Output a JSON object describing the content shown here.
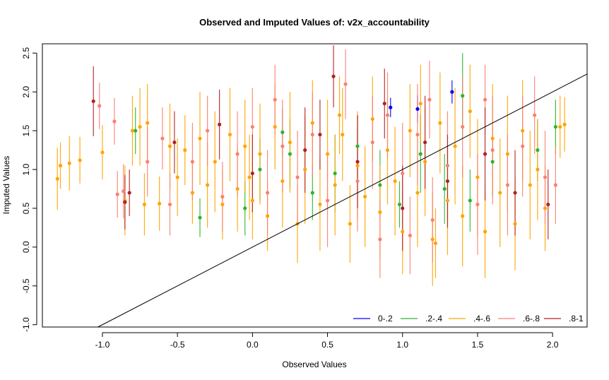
{
  "chart_data": {
    "type": "scatter",
    "title": "Observed and Imputed Values of: v2x_accountability",
    "xlabel": "Observed Values",
    "ylabel": "Imputed Values",
    "xlim": [
      -1.4,
      2.23
    ],
    "ylim": [
      -1.03,
      2.62
    ],
    "x_ticks": [
      -1.0,
      -0.5,
      0.0,
      0.5,
      1.0,
      1.5,
      2.0
    ],
    "x_tick_labels": [
      "-1.0",
      "-0.5",
      "0.0",
      "0.5",
      "1.0",
      "1.5",
      "2.0"
    ],
    "y_ticks": [
      -1.0,
      -0.5,
      0.0,
      0.5,
      1.0,
      1.5,
      2.0,
      2.5
    ],
    "y_tick_labels": [
      "-1.0",
      "-0.5",
      "0.0",
      "0.5",
      "1.0",
      "1.5",
      "2.0",
      "2.5"
    ],
    "grid": false,
    "legend_position": "bottom-right",
    "reference_line": {
      "slope": 1,
      "intercept": 0,
      "color": "#000000"
    },
    "series": [
      {
        "name": "0-.2",
        "color": "#0000ff",
        "points": [
          [
            1.1,
            1.78,
            0.35
          ],
          [
            1.33,
            2.0,
            0.3
          ],
          [
            0.92,
            1.8,
            0.25
          ]
        ]
      },
      {
        "name": ".2-.4",
        "color": "#2db52d",
        "points": [
          [
            -0.78,
            1.5,
            0.6
          ],
          [
            -0.35,
            0.38,
            0.5
          ],
          [
            -0.05,
            0.5,
            0.7
          ],
          [
            0.05,
            1.0,
            0.8
          ],
          [
            0.2,
            1.48,
            0.6
          ],
          [
            0.25,
            1.2,
            0.9
          ],
          [
            0.55,
            0.95,
            1.0
          ],
          [
            0.7,
            1.3,
            0.8
          ],
          [
            0.85,
            0.8,
            0.9
          ],
          [
            0.98,
            0.55,
            0.6
          ],
          [
            1.12,
            1.2,
            1.0
          ],
          [
            1.28,
            0.75,
            0.9
          ],
          [
            1.4,
            1.95,
            1.1
          ],
          [
            1.45,
            0.6,
            0.8
          ],
          [
            1.6,
            1.1,
            0.9
          ],
          [
            1.9,
            1.25,
            0.8
          ],
          [
            2.02,
            1.55,
            0.7
          ],
          [
            0.4,
            0.7,
            0.7
          ]
        ]
      },
      {
        "name": ".4-.6",
        "color": "#ffa500",
        "points": [
          [
            -1.3,
            0.88,
            0.8
          ],
          [
            -1.28,
            1.05,
            0.6
          ],
          [
            -1.22,
            1.08,
            0.7
          ],
          [
            -1.15,
            1.12,
            0.6
          ],
          [
            -1.0,
            1.22,
            0.7
          ],
          [
            -0.85,
            0.6,
            0.9
          ],
          [
            -0.8,
            1.5,
            0.9
          ],
          [
            -0.75,
            1.55,
            1.0
          ],
          [
            -0.72,
            0.55,
            0.8
          ],
          [
            -0.7,
            1.6,
            1.0
          ],
          [
            -0.62,
            0.56,
            0.7
          ],
          [
            -0.55,
            1.3,
            1.1
          ],
          [
            -0.5,
            0.9,
            1.0
          ],
          [
            -0.45,
            1.25,
            0.9
          ],
          [
            -0.4,
            0.7,
            0.8
          ],
          [
            -0.35,
            1.4,
            1.2
          ],
          [
            -0.3,
            0.8,
            1.1
          ],
          [
            -0.25,
            1.1,
            1.3
          ],
          [
            -0.2,
            0.55,
            0.9
          ],
          [
            -0.15,
            1.45,
            1.2
          ],
          [
            -0.1,
            0.75,
            1.1
          ],
          [
            -0.05,
            1.3,
            1.2
          ],
          [
            0.0,
            0.6,
            1.0
          ],
          [
            0.05,
            1.2,
            1.3
          ],
          [
            0.1,
            0.4,
            0.9
          ],
          [
            0.15,
            1.55,
            1.1
          ],
          [
            0.2,
            0.85,
            1.2
          ],
          [
            0.25,
            1.35,
            1.3
          ],
          [
            0.3,
            0.3,
            1.0
          ],
          [
            0.35,
            1.0,
            1.4
          ],
          [
            0.4,
            1.6,
            1.1
          ],
          [
            0.45,
            0.55,
            1.2
          ],
          [
            0.5,
            1.2,
            1.4
          ],
          [
            0.55,
            0.8,
            1.3
          ],
          [
            0.6,
            1.45,
            1.2
          ],
          [
            0.65,
            0.3,
            1.0
          ],
          [
            0.7,
            1.05,
            1.4
          ],
          [
            0.75,
            0.65,
            1.3
          ],
          [
            0.8,
            1.65,
            1.1
          ],
          [
            0.85,
            0.45,
            1.2
          ],
          [
            0.9,
            1.25,
            1.4
          ],
          [
            0.95,
            0.85,
            1.4
          ],
          [
            1.0,
            0.2,
            1.1
          ],
          [
            1.05,
            1.5,
            1.2
          ],
          [
            1.1,
            0.7,
            1.4
          ],
          [
            1.15,
            1.1,
            1.4
          ],
          [
            1.2,
            0.1,
            1.2
          ],
          [
            1.25,
            1.6,
            1.3
          ],
          [
            1.3,
            0.6,
            1.4
          ],
          [
            1.35,
            1.3,
            1.5
          ],
          [
            1.4,
            0.4,
            1.3
          ],
          [
            1.45,
            1.75,
            1.2
          ],
          [
            1.5,
            0.9,
            1.5
          ],
          [
            1.55,
            0.2,
            1.2
          ],
          [
            1.6,
            1.4,
            1.4
          ],
          [
            1.65,
            0.7,
            1.4
          ],
          [
            1.7,
            1.2,
            1.5
          ],
          [
            1.75,
            0.3,
            1.2
          ],
          [
            1.8,
            1.5,
            1.3
          ],
          [
            1.85,
            0.8,
            1.4
          ],
          [
            1.9,
            1.0,
            1.3
          ],
          [
            1.95,
            0.5,
            1.1
          ],
          [
            2.05,
            1.55,
            0.8
          ],
          [
            2.08,
            1.58,
            0.7
          ],
          [
            1.22,
            0.05,
            0.9
          ],
          [
            -0.02,
            0.9,
            1.1
          ],
          [
            0.58,
            1.7,
            1.0
          ],
          [
            1.12,
            1.85,
            1.0
          ]
        ]
      },
      {
        "name": ".6-.8",
        "color": "#fa8072",
        "points": [
          [
            -1.02,
            1.82,
            0.6
          ],
          [
            -0.92,
            1.62,
            0.6
          ],
          [
            -0.9,
            0.68,
            0.6
          ],
          [
            -0.86,
            0.72,
            0.7
          ],
          [
            -0.6,
            1.4,
            0.8
          ],
          [
            -0.4,
            1.1,
            1.0
          ],
          [
            -0.3,
            1.5,
            0.9
          ],
          [
            -0.2,
            0.65,
            0.9
          ],
          [
            -0.1,
            1.2,
            1.1
          ],
          [
            0.0,
            1.55,
            1.0
          ],
          [
            0.1,
            0.7,
            1.1
          ],
          [
            0.2,
            1.3,
            1.2
          ],
          [
            0.3,
            0.9,
            1.2
          ],
          [
            0.4,
            1.45,
            1.1
          ],
          [
            0.5,
            0.6,
            1.2
          ],
          [
            0.62,
            2.1,
            0.9
          ],
          [
            0.7,
            0.85,
            1.3
          ],
          [
            0.8,
            1.35,
            1.2
          ],
          [
            0.9,
            1.7,
            1.1
          ],
          [
            1.0,
            0.95,
            1.3
          ],
          [
            1.1,
            1.45,
            1.3
          ],
          [
            1.18,
            1.9,
            1.0
          ],
          [
            1.2,
            0.35,
            1.1
          ],
          [
            1.3,
            1.05,
            1.4
          ],
          [
            1.4,
            1.55,
            1.3
          ],
          [
            1.5,
            0.55,
            1.3
          ],
          [
            1.6,
            1.25,
            1.4
          ],
          [
            1.7,
            0.8,
            1.3
          ],
          [
            1.8,
            1.3,
            1.3
          ],
          [
            1.88,
            1.7,
            1.0
          ],
          [
            1.95,
            0.9,
            1.2
          ],
          [
            2.02,
            0.8,
            1.0
          ],
          [
            -0.55,
            0.55,
            0.8
          ],
          [
            0.15,
            1.9,
            0.9
          ],
          [
            1.05,
            0.15,
            1.0
          ],
          [
            1.55,
            1.9,
            0.9
          ],
          [
            0.85,
            0.1,
            1.0
          ],
          [
            -0.7,
            1.1,
            0.9
          ]
        ]
      },
      {
        "name": ".8-1",
        "color": "#b22222",
        "points": [
          [
            -1.06,
            1.88,
            0.9
          ],
          [
            -0.85,
            0.58,
            0.7
          ],
          [
            -0.82,
            0.7,
            0.6
          ],
          [
            -0.52,
            1.35,
            0.8
          ],
          [
            -0.22,
            1.58,
            0.9
          ],
          [
            0.0,
            0.95,
            1.0
          ],
          [
            0.35,
            1.25,
            1.1
          ],
          [
            0.45,
            1.45,
            0.9
          ],
          [
            0.54,
            2.2,
            0.8
          ],
          [
            0.7,
            1.1,
            1.2
          ],
          [
            0.88,
            1.85,
            0.9
          ],
          [
            1.0,
            0.5,
            1.1
          ],
          [
            1.15,
            1.35,
            1.2
          ],
          [
            1.3,
            0.85,
            1.2
          ],
          [
            1.55,
            1.2,
            1.2
          ],
          [
            1.75,
            0.7,
            1.1
          ],
          [
            1.97,
            0.55,
            0.9
          ]
        ]
      }
    ]
  }
}
